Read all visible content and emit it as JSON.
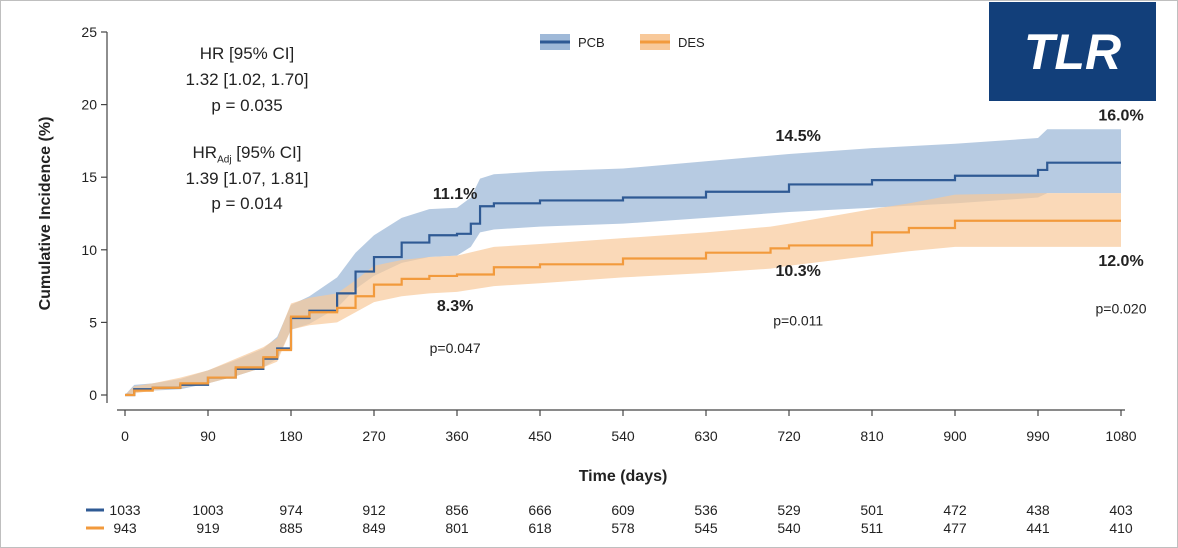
{
  "badge": {
    "label": "TLR"
  },
  "stats": {
    "hr_title": "HR [95% CI]",
    "hr_value": "1.32  [1.02, 1.70]",
    "hr_p": "p = 0.035",
    "hradj_prefix": "HR",
    "hradj_sub": "Adj",
    "hradj_suffix": " [95% CI]",
    "hradj_value": "1.39  [1.07, 1.81]",
    "hradj_p": "p = 0.014"
  },
  "chart_data": {
    "type": "line",
    "title": "",
    "xlabel": "Time (days)",
    "ylabel": "Cumulative Incidence (%)",
    "xlim": [
      0,
      1080
    ],
    "ylim": [
      0,
      25
    ],
    "xticks": [
      0,
      90,
      180,
      270,
      360,
      450,
      540,
      630,
      720,
      810,
      900,
      990,
      1080
    ],
    "yticks": [
      0,
      5,
      10,
      15,
      20,
      25
    ],
    "grid": false,
    "legend": "top-center",
    "series": [
      {
        "name": "PCB",
        "color": "#2f5a94",
        "band_color": "#9fb9d8",
        "x": [
          0,
          10,
          30,
          60,
          90,
          120,
          150,
          165,
          180,
          200,
          230,
          250,
          270,
          300,
          330,
          360,
          375,
          385,
          400,
          450,
          540,
          630,
          720,
          810,
          900,
          990,
          1000,
          1080
        ],
        "y": [
          0,
          0.4,
          0.5,
          0.7,
          1.2,
          1.8,
          2.5,
          3.2,
          5.3,
          5.8,
          7.0,
          8.5,
          9.5,
          10.5,
          11.0,
          11.1,
          11.8,
          13.0,
          13.2,
          13.4,
          13.6,
          14.0,
          14.5,
          14.8,
          15.1,
          15.5,
          16.0,
          16.0
        ],
        "lower": [
          0,
          0.2,
          0.3,
          0.4,
          0.8,
          1.3,
          1.9,
          2.5,
          4.5,
          4.9,
          6.0,
          7.3,
          8.2,
          9.1,
          9.5,
          9.6,
          10.2,
          11.2,
          11.4,
          11.6,
          11.8,
          12.2,
          12.6,
          12.9,
          13.2,
          13.6,
          13.9,
          13.9
        ],
        "upper": [
          0,
          0.7,
          0.8,
          1.1,
          1.7,
          2.4,
          3.2,
          4.0,
          6.2,
          6.8,
          8.1,
          9.8,
          11.0,
          12.2,
          12.8,
          12.9,
          13.6,
          14.9,
          15.2,
          15.4,
          15.6,
          16.1,
          16.6,
          17.0,
          17.3,
          17.7,
          18.3,
          18.3
        ]
      },
      {
        "name": "DES",
        "color": "#f29a3c",
        "band_color": "#f8c99a",
        "x": [
          0,
          10,
          30,
          60,
          90,
          120,
          150,
          165,
          180,
          200,
          230,
          250,
          270,
          300,
          330,
          360,
          400,
          450,
          540,
          630,
          700,
          720,
          810,
          850,
          900,
          990,
          1080
        ],
        "y": [
          0,
          0.3,
          0.5,
          0.8,
          1.2,
          1.9,
          2.6,
          3.1,
          5.4,
          5.7,
          6.0,
          6.8,
          7.6,
          8.0,
          8.2,
          8.3,
          8.8,
          9.0,
          9.4,
          9.8,
          10.1,
          10.3,
          11.2,
          11.5,
          12.0,
          12.0,
          12.0
        ],
        "lower": [
          0,
          0.1,
          0.3,
          0.5,
          0.8,
          1.3,
          1.9,
          2.3,
          4.5,
          4.8,
          5.0,
          5.7,
          6.4,
          6.8,
          7.0,
          7.1,
          7.5,
          7.7,
          8.1,
          8.4,
          8.7,
          8.9,
          9.6,
          9.9,
          10.2,
          10.2,
          10.2
        ],
        "upper": [
          0,
          0.6,
          0.8,
          1.2,
          1.7,
          2.5,
          3.3,
          3.9,
          6.3,
          6.7,
          7.0,
          7.9,
          8.9,
          9.3,
          9.5,
          9.6,
          10.2,
          10.4,
          10.8,
          11.2,
          11.6,
          11.8,
          12.8,
          13.2,
          13.8,
          13.9,
          13.9
        ]
      }
    ],
    "annotations": [
      {
        "text": "11.1%",
        "x": 358,
        "y": 13.5,
        "bold": true
      },
      {
        "text": "8.3%",
        "x": 358,
        "y": 5.8,
        "bold": true
      },
      {
        "text": "p=0.047",
        "x": 358,
        "y": 2.9,
        "bold": false
      },
      {
        "text": "14.5%",
        "x": 730,
        "y": 17.5,
        "bold": true
      },
      {
        "text": "10.3%",
        "x": 730,
        "y": 8.2,
        "bold": true
      },
      {
        "text": "p=0.011",
        "x": 730,
        "y": 4.8,
        "bold": false
      },
      {
        "text": "16.0%",
        "x": 1080,
        "y": 18.9,
        "bold": true
      },
      {
        "text": "12.0%",
        "x": 1080,
        "y": 8.9,
        "bold": true
      },
      {
        "text": "p=0.020",
        "x": 1080,
        "y": 5.6,
        "bold": false
      }
    ],
    "risk_table": [
      {
        "name": "PCB",
        "color": "#2f5a94",
        "values": [
          1033,
          1003,
          974,
          912,
          856,
          666,
          609,
          536,
          529,
          501,
          472,
          438,
          403
        ]
      },
      {
        "name": "DES",
        "color": "#f29a3c",
        "values": [
          943,
          919,
          885,
          849,
          801,
          618,
          578,
          545,
          540,
          511,
          477,
          441,
          410
        ]
      }
    ]
  }
}
